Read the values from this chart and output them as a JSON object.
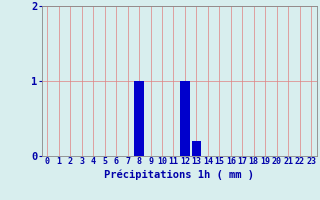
{
  "hours": [
    0,
    1,
    2,
    3,
    4,
    5,
    6,
    7,
    8,
    9,
    10,
    11,
    12,
    13,
    14,
    15,
    16,
    17,
    18,
    19,
    20,
    21,
    22,
    23
  ],
  "values": [
    0,
    0,
    0,
    0,
    0,
    0,
    0,
    0,
    1.0,
    0,
    0,
    0,
    1.0,
    0.2,
    0,
    0,
    0,
    0,
    0,
    0,
    0,
    0,
    0,
    0
  ],
  "bar_color": "#0000cc",
  "background_color": "#d8eeee",
  "grid_color": "#e08080",
  "axis_color": "#888888",
  "tick_label_color": "#0000aa",
  "xlabel": "Précipitations 1h ( mm )",
  "xlabel_color": "#0000aa",
  "ylim": [
    0,
    2
  ],
  "yticks": [
    0,
    1,
    2
  ],
  "xlim": [
    -0.5,
    23.5
  ],
  "xlabel_fontsize": 7.5,
  "tick_fontsize": 6.0,
  "ytick_fontsize": 7.5
}
